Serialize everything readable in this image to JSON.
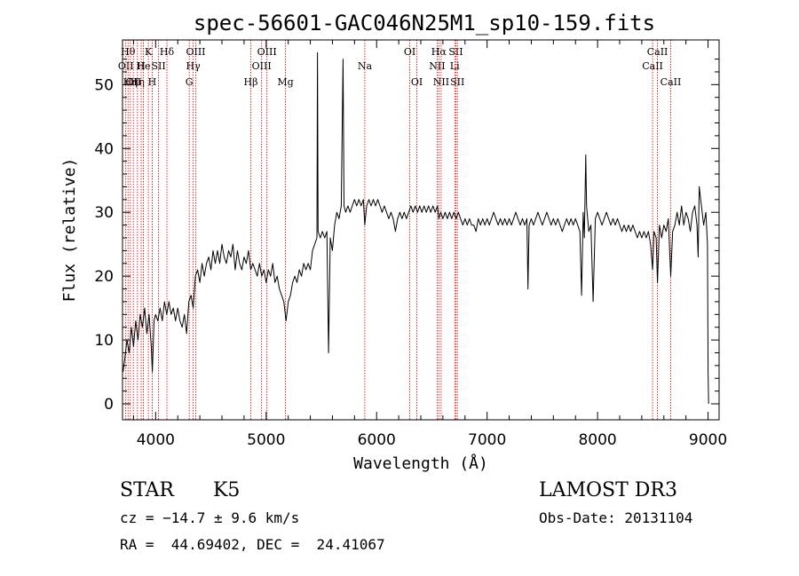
{
  "chart_data": {
    "type": "line",
    "title": "spec-56601-GAC046N25M1_sp10-159.fits",
    "xlabel": "Wavelength (Å)",
    "ylabel": "Flux (relative)",
    "xlim": [
      3700,
      9100
    ],
    "ylim": [
      -2.5,
      57
    ],
    "xticks": [
      4000,
      5000,
      6000,
      7000,
      8000,
      9000
    ],
    "yticks": [
      0,
      10,
      20,
      30,
      40,
      50
    ],
    "grid": false,
    "line_color": "#000000",
    "line_marker_color": "#cc0000",
    "series": [
      {
        "points": [
          [
            3705,
            5
          ],
          [
            3720,
            7
          ],
          [
            3740,
            10
          ],
          [
            3760,
            8
          ],
          [
            3780,
            12
          ],
          [
            3800,
            9
          ],
          [
            3820,
            13
          ],
          [
            3840,
            10
          ],
          [
            3860,
            14
          ],
          [
            3880,
            12
          ],
          [
            3900,
            15
          ],
          [
            3920,
            11
          ],
          [
            3940,
            14
          ],
          [
            3960,
            9
          ],
          [
            3970,
            5
          ],
          [
            3985,
            13
          ],
          [
            4000,
            14
          ],
          [
            4020,
            13
          ],
          [
            4040,
            15
          ],
          [
            4060,
            13
          ],
          [
            4080,
            16
          ],
          [
            4100,
            14
          ],
          [
            4120,
            16
          ],
          [
            4140,
            14
          ],
          [
            4160,
            15
          ],
          [
            4180,
            13
          ],
          [
            4200,
            15
          ],
          [
            4220,
            13
          ],
          [
            4240,
            12
          ],
          [
            4260,
            14
          ],
          [
            4280,
            11
          ],
          [
            4300,
            16
          ],
          [
            4320,
            17
          ],
          [
            4340,
            15
          ],
          [
            4360,
            20
          ],
          [
            4380,
            21
          ],
          [
            4400,
            19
          ],
          [
            4420,
            22
          ],
          [
            4440,
            20
          ],
          [
            4460,
            22
          ],
          [
            4480,
            23
          ],
          [
            4500,
            21
          ],
          [
            4520,
            24
          ],
          [
            4540,
            22
          ],
          [
            4560,
            24
          ],
          [
            4580,
            22
          ],
          [
            4600,
            25
          ],
          [
            4620,
            23
          ],
          [
            4640,
            22
          ],
          [
            4660,
            24
          ],
          [
            4680,
            23
          ],
          [
            4700,
            25
          ],
          [
            4720,
            21
          ],
          [
            4740,
            24
          ],
          [
            4760,
            22
          ],
          [
            4780,
            21
          ],
          [
            4800,
            23
          ],
          [
            4820,
            22
          ],
          [
            4840,
            24
          ],
          [
            4860,
            21
          ],
          [
            4880,
            22
          ],
          [
            4900,
            21
          ],
          [
            4920,
            20
          ],
          [
            4940,
            22
          ],
          [
            4960,
            20
          ],
          [
            4980,
            21
          ],
          [
            5000,
            19
          ],
          [
            5020,
            21
          ],
          [
            5040,
            20
          ],
          [
            5060,
            22
          ],
          [
            5080,
            19
          ],
          [
            5100,
            20
          ],
          [
            5120,
            18
          ],
          [
            5140,
            17
          ],
          [
            5160,
            16
          ],
          [
            5180,
            13
          ],
          [
            5200,
            16
          ],
          [
            5220,
            17
          ],
          [
            5240,
            19
          ],
          [
            5260,
            20
          ],
          [
            5280,
            19
          ],
          [
            5300,
            21
          ],
          [
            5320,
            20
          ],
          [
            5340,
            22
          ],
          [
            5360,
            21
          ],
          [
            5380,
            22
          ],
          [
            5400,
            21
          ],
          [
            5420,
            24
          ],
          [
            5440,
            25
          ],
          [
            5460,
            26
          ],
          [
            5465,
            55
          ],
          [
            5470,
            27
          ],
          [
            5490,
            26
          ],
          [
            5510,
            27
          ],
          [
            5530,
            26
          ],
          [
            5550,
            27
          ],
          [
            5565,
            8
          ],
          [
            5580,
            26
          ],
          [
            5600,
            24
          ],
          [
            5620,
            28
          ],
          [
            5640,
            30
          ],
          [
            5660,
            29
          ],
          [
            5680,
            31
          ],
          [
            5696,
            54
          ],
          [
            5705,
            31
          ],
          [
            5720,
            30
          ],
          [
            5740,
            31
          ],
          [
            5760,
            30
          ],
          [
            5780,
            31
          ],
          [
            5800,
            32
          ],
          [
            5820,
            31
          ],
          [
            5840,
            32
          ],
          [
            5860,
            31
          ],
          [
            5880,
            32
          ],
          [
            5893,
            28
          ],
          [
            5910,
            31
          ],
          [
            5930,
            32
          ],
          [
            5950,
            31
          ],
          [
            5970,
            32
          ],
          [
            5990,
            31
          ],
          [
            6010,
            32
          ],
          [
            6030,
            31
          ],
          [
            6050,
            30
          ],
          [
            6070,
            31
          ],
          [
            6090,
            30
          ],
          [
            6110,
            29
          ],
          [
            6130,
            30
          ],
          [
            6150,
            29
          ],
          [
            6170,
            27
          ],
          [
            6190,
            29
          ],
          [
            6210,
            30
          ],
          [
            6230,
            29
          ],
          [
            6250,
            30
          ],
          [
            6270,
            29
          ],
          [
            6290,
            30
          ],
          [
            6310,
            31
          ],
          [
            6330,
            30
          ],
          [
            6350,
            31
          ],
          [
            6370,
            30
          ],
          [
            6390,
            31
          ],
          [
            6410,
            30
          ],
          [
            6430,
            31
          ],
          [
            6450,
            30
          ],
          [
            6470,
            31
          ],
          [
            6490,
            30
          ],
          [
            6510,
            31
          ],
          [
            6530,
            30
          ],
          [
            6550,
            31
          ],
          [
            6563,
            29
          ],
          [
            6580,
            30
          ],
          [
            6600,
            29
          ],
          [
            6620,
            30
          ],
          [
            6640,
            29
          ],
          [
            6660,
            30
          ],
          [
            6680,
            29
          ],
          [
            6700,
            30
          ],
          [
            6720,
            29
          ],
          [
            6740,
            30
          ],
          [
            6760,
            29
          ],
          [
            6780,
            28
          ],
          [
            6800,
            29
          ],
          [
            6820,
            28
          ],
          [
            6840,
            29
          ],
          [
            6860,
            28
          ],
          [
            6880,
            28
          ],
          [
            6900,
            27
          ],
          [
            6920,
            29
          ],
          [
            6940,
            28
          ],
          [
            6960,
            29
          ],
          [
            6980,
            28
          ],
          [
            7000,
            29
          ],
          [
            7020,
            28
          ],
          [
            7040,
            29
          ],
          [
            7060,
            30
          ],
          [
            7080,
            29
          ],
          [
            7100,
            28
          ],
          [
            7120,
            29
          ],
          [
            7140,
            28
          ],
          [
            7160,
            29
          ],
          [
            7180,
            28
          ],
          [
            7200,
            29
          ],
          [
            7220,
            28
          ],
          [
            7240,
            29
          ],
          [
            7260,
            30
          ],
          [
            7280,
            29
          ],
          [
            7300,
            28
          ],
          [
            7320,
            29
          ],
          [
            7340,
            28
          ],
          [
            7360,
            29
          ],
          [
            7370,
            18
          ],
          [
            7380,
            28
          ],
          [
            7400,
            29
          ],
          [
            7420,
            28
          ],
          [
            7440,
            29
          ],
          [
            7460,
            30
          ],
          [
            7480,
            29
          ],
          [
            7500,
            28
          ],
          [
            7520,
            29
          ],
          [
            7540,
            30
          ],
          [
            7560,
            29
          ],
          [
            7580,
            28
          ],
          [
            7600,
            29
          ],
          [
            7620,
            28
          ],
          [
            7640,
            29
          ],
          [
            7660,
            28
          ],
          [
            7680,
            27
          ],
          [
            7700,
            28
          ],
          [
            7720,
            29
          ],
          [
            7740,
            28
          ],
          [
            7760,
            29
          ],
          [
            7780,
            28
          ],
          [
            7800,
            29
          ],
          [
            7820,
            28
          ],
          [
            7840,
            27
          ],
          [
            7855,
            17
          ],
          [
            7870,
            30
          ],
          [
            7880,
            26
          ],
          [
            7893,
            39
          ],
          [
            7900,
            31
          ],
          [
            7920,
            27
          ],
          [
            7940,
            28
          ],
          [
            7960,
            16
          ],
          [
            7980,
            29
          ],
          [
            8000,
            30
          ],
          [
            8020,
            29
          ],
          [
            8040,
            28
          ],
          [
            8060,
            29
          ],
          [
            8080,
            30
          ],
          [
            8100,
            29
          ],
          [
            8120,
            28
          ],
          [
            8140,
            29
          ],
          [
            8160,
            28
          ],
          [
            8180,
            29
          ],
          [
            8200,
            28
          ],
          [
            8220,
            27
          ],
          [
            8240,
            28
          ],
          [
            8260,
            27
          ],
          [
            8280,
            28
          ],
          [
            8300,
            27
          ],
          [
            8320,
            28
          ],
          [
            8340,
            27
          ],
          [
            8360,
            26
          ],
          [
            8380,
            27
          ],
          [
            8400,
            26
          ],
          [
            8420,
            27
          ],
          [
            8440,
            26
          ],
          [
            8460,
            27
          ],
          [
            8480,
            25
          ],
          [
            8498,
            21
          ],
          [
            8510,
            27
          ],
          [
            8530,
            26
          ],
          [
            8542,
            19
          ],
          [
            8560,
            28
          ],
          [
            8580,
            26
          ],
          [
            8600,
            28
          ],
          [
            8620,
            27
          ],
          [
            8640,
            29
          ],
          [
            8662,
            20
          ],
          [
            8680,
            27
          ],
          [
            8700,
            28
          ],
          [
            8720,
            30
          ],
          [
            8740,
            28
          ],
          [
            8760,
            31
          ],
          [
            8780,
            28
          ],
          [
            8800,
            30
          ],
          [
            8820,
            29
          ],
          [
            8840,
            27
          ],
          [
            8860,
            30
          ],
          [
            8880,
            31
          ],
          [
            8900,
            28
          ],
          [
            8910,
            23
          ],
          [
            8920,
            34
          ],
          [
            8940,
            31
          ],
          [
            8960,
            28
          ],
          [
            8980,
            30
          ],
          [
            8995,
            25
          ],
          [
            9000,
            5
          ],
          [
            9005,
            0
          ]
        ]
      }
    ],
    "line_markers": [
      {
        "x": 3730,
        "label": "OII",
        "row": 2
      },
      {
        "x": 3750,
        "label": "Hθ",
        "row": 1
      },
      {
        "x": 3771,
        "label": "Hη",
        "row": 3
      },
      {
        "x": 3798,
        "label": "OII",
        "row": 3
      },
      {
        "x": 3835,
        "label": "Hη",
        "row": 3
      },
      {
        "x": 3869,
        "label": "H",
        "row": 2
      },
      {
        "x": 3889,
        "label": "He",
        "row": 2
      },
      {
        "x": 3934,
        "label": "K",
        "row": 1
      },
      {
        "x": 3969,
        "label": "H",
        "row": 3
      },
      {
        "x": 4026,
        "label": "SII",
        "row": 2
      },
      {
        "x": 4102,
        "label": "Hδ",
        "row": 1
      },
      {
        "x": 4304,
        "label": "G",
        "row": 3
      },
      {
        "x": 4340,
        "label": "Hγ",
        "row": 2
      },
      {
        "x": 4363,
        "label": "OIII",
        "row": 1
      },
      {
        "x": 4861,
        "label": "Hβ",
        "row": 3
      },
      {
        "x": 4959,
        "label": "OIII",
        "row": 2
      },
      {
        "x": 5007,
        "label": "OIII",
        "row": 1
      },
      {
        "x": 5175,
        "label": "Mg",
        "row": 3
      },
      {
        "x": 5893,
        "label": "Na",
        "row": 2
      },
      {
        "x": 6300,
        "label": "OI",
        "row": 1
      },
      {
        "x": 6364,
        "label": "OI",
        "row": 3
      },
      {
        "x": 6548,
        "label": "NII",
        "row": 2
      },
      {
        "x": 6563,
        "label": "Hα",
        "row": 1
      },
      {
        "x": 6584,
        "label": "NII",
        "row": 3
      },
      {
        "x": 6707,
        "label": "Li",
        "row": 2
      },
      {
        "x": 6717,
        "label": "SII",
        "row": 1
      },
      {
        "x": 6731,
        "label": "SII",
        "row": 3
      },
      {
        "x": 8498,
        "label": "CaII",
        "row": 2
      },
      {
        "x": 8542,
        "label": "CaII",
        "row": 1
      },
      {
        "x": 8662,
        "label": "CaII",
        "row": 3
      }
    ]
  },
  "info": {
    "object_class": "STAR",
    "subclass": "K5",
    "cz": "cz = −14.7 ± 9.6 km/s",
    "coords": "RA =  44.69402, DEC =  24.41067",
    "survey": "LAMOST DR3",
    "obs_date": "Obs-Date: 20131104"
  }
}
